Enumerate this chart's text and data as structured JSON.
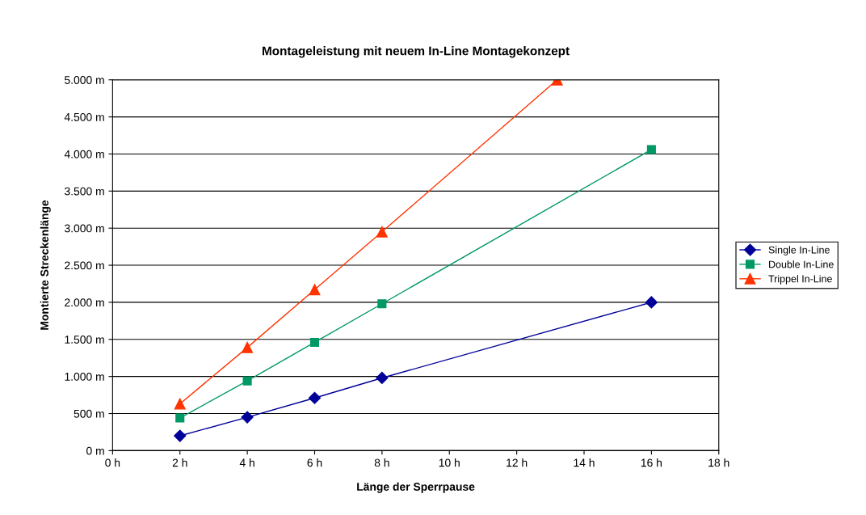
{
  "chart_data": {
    "type": "line",
    "title": "Montageleistung mit neuem In-Line Montagekonzept",
    "xlabel": "Länge der Sperrpause",
    "ylabel": "Montierte Streckenlänge",
    "x": [
      2,
      4,
      6,
      8,
      16
    ],
    "series": [
      {
        "name": "Single In-Line",
        "color": "#000099",
        "marker": "diamond",
        "values": [
          200,
          450,
          710,
          980,
          2000
        ]
      },
      {
        "name": "Double In-Line",
        "color": "#009966",
        "marker": "square",
        "values": [
          440,
          940,
          1460,
          1980,
          4060
        ]
      },
      {
        "name": "Trippel In-Line",
        "color": "#ff3300",
        "marker": "triangle",
        "x": [
          2,
          4,
          6,
          8,
          13.2
        ],
        "values": [
          630,
          1390,
          2170,
          2950,
          5000
        ]
      }
    ],
    "xlim": [
      0,
      18
    ],
    "xticks": [
      {
        "value": 0,
        "label": "0 h"
      },
      {
        "value": 2,
        "label": "2 h"
      },
      {
        "value": 4,
        "label": "4 h"
      },
      {
        "value": 6,
        "label": "6 h"
      },
      {
        "value": 8,
        "label": "8 h"
      },
      {
        "value": 10,
        "label": "10 h"
      },
      {
        "value": 12,
        "label": "12 h"
      },
      {
        "value": 14,
        "label": "14 h"
      },
      {
        "value": 16,
        "label": "16 h"
      },
      {
        "value": 18,
        "label": "18 h"
      }
    ],
    "ylim": [
      0,
      5000
    ],
    "yticks": [
      {
        "value": 0,
        "label": "0 m"
      },
      {
        "value": 500,
        "label": "500 m"
      },
      {
        "value": 1000,
        "label": "1.000 m"
      },
      {
        "value": 1500,
        "label": "1.500 m"
      },
      {
        "value": 2000,
        "label": "2.000 m"
      },
      {
        "value": 2500,
        "label": "2.500 m"
      },
      {
        "value": 3000,
        "label": "3.000 m"
      },
      {
        "value": 3500,
        "label": "3.500 m"
      },
      {
        "value": 4000,
        "label": "4.000 m"
      },
      {
        "value": 4500,
        "label": "4.500 m"
      },
      {
        "value": 5000,
        "label": "5.000 m"
      }
    ],
    "grid": "y",
    "legend": "right",
    "line_style": "solid"
  }
}
